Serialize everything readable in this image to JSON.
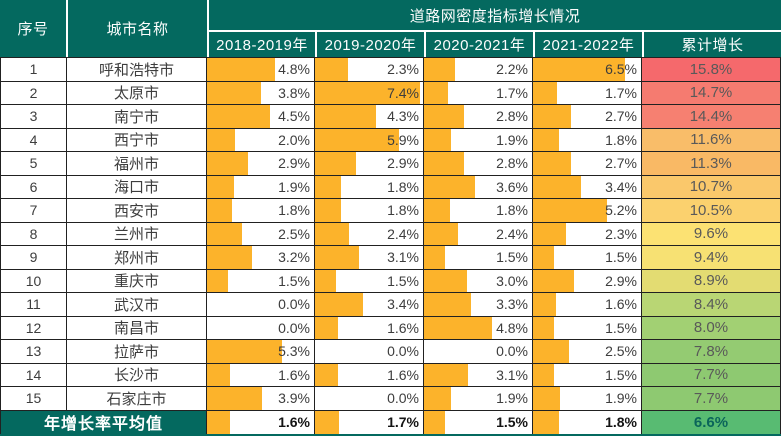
{
  "table": {
    "header": {
      "col_index": "序号",
      "col_city": "城市名称",
      "group_title": "道路网密度指标增长情况",
      "years": [
        "2018-2019年",
        "2019-2020年",
        "2020-2021年",
        "2021-2022年"
      ],
      "col_cumulative": "累计增长"
    },
    "bar_max_percent": 7.6,
    "rows": [
      {
        "index": "1",
        "city": "呼和浩特市",
        "values": [
          "4.8%",
          "2.3%",
          "2.2%",
          "6.5%"
        ],
        "cumulative": "15.8%",
        "cumulative_bg": "#F5696C"
      },
      {
        "index": "2",
        "city": "太原市",
        "values": [
          "3.8%",
          "7.4%",
          "1.7%",
          "1.7%"
        ],
        "cumulative": "14.7%",
        "cumulative_bg": "#F57B70"
      },
      {
        "index": "3",
        "city": "南宁市",
        "values": [
          "4.5%",
          "4.3%",
          "2.8%",
          "2.7%"
        ],
        "cumulative": "14.4%",
        "cumulative_bg": "#F68071"
      },
      {
        "index": "4",
        "city": "西宁市",
        "values": [
          "2.0%",
          "5.9%",
          "1.9%",
          "1.8%"
        ],
        "cumulative": "11.6%",
        "cumulative_bg": "#F9BD69"
      },
      {
        "index": "5",
        "city": "福州市",
        "values": [
          "2.9%",
          "2.9%",
          "2.8%",
          "2.7%"
        ],
        "cumulative": "11.3%",
        "cumulative_bg": "#F9B965"
      },
      {
        "index": "6",
        "city": "海口市",
        "values": [
          "1.9%",
          "1.8%",
          "3.6%",
          "3.4%"
        ],
        "cumulative": "10.7%",
        "cumulative_bg": "#FAC86B"
      },
      {
        "index": "7",
        "city": "西安市",
        "values": [
          "1.8%",
          "1.8%",
          "1.8%",
          "5.2%"
        ],
        "cumulative": "10.5%",
        "cumulative_bg": "#FBD16E"
      },
      {
        "index": "8",
        "city": "兰州市",
        "values": [
          "2.5%",
          "2.4%",
          "2.4%",
          "2.3%"
        ],
        "cumulative": "9.6%",
        "cumulative_bg": "#FCE273"
      },
      {
        "index": "9",
        "city": "郑州市",
        "values": [
          "3.2%",
          "3.1%",
          "1.5%",
          "1.5%"
        ],
        "cumulative": "9.4%",
        "cumulative_bg": "#F7E173"
      },
      {
        "index": "10",
        "city": "重庆市",
        "values": [
          "1.5%",
          "1.5%",
          "3.0%",
          "2.9%"
        ],
        "cumulative": "8.9%",
        "cumulative_bg": "#E3DC72"
      },
      {
        "index": "11",
        "city": "武汉市",
        "values": [
          "0.0%",
          "3.4%",
          "3.3%",
          "1.6%"
        ],
        "cumulative": "8.4%",
        "cumulative_bg": "#B9D674"
      },
      {
        "index": "12",
        "city": "南昌市",
        "values": [
          "0.0%",
          "1.6%",
          "4.8%",
          "1.5%"
        ],
        "cumulative": "8.0%",
        "cumulative_bg": "#A2D073"
      },
      {
        "index": "13",
        "city": "拉萨市",
        "values": [
          "5.3%",
          "0.0%",
          "0.0%",
          "2.5%"
        ],
        "cumulative": "7.8%",
        "cumulative_bg": "#94CB72"
      },
      {
        "index": "14",
        "city": "长沙市",
        "values": [
          "1.6%",
          "1.6%",
          "3.1%",
          "1.5%"
        ],
        "cumulative": "7.7%",
        "cumulative_bg": "#8EC971"
      },
      {
        "index": "15",
        "city": "石家庄市",
        "values": [
          "3.9%",
          "0.0%",
          "1.9%",
          "1.9%"
        ],
        "cumulative": "7.7%",
        "cumulative_bg": "#8EC971"
      }
    ],
    "average": {
      "label": "年增长率平均值",
      "values": [
        "1.6%",
        "1.7%",
        "1.5%",
        "1.8%"
      ],
      "cumulative": "6.6%",
      "cumulative_bg": "#58BB72"
    }
  },
  "colors": {
    "header_bg": "#04695F",
    "bar": "#FCB32B",
    "grid": "#212121",
    "cumulative_max_red": "#F5696C",
    "cumulative_mid_yellow": "#FCE273",
    "cumulative_min_green": "#58BB72"
  },
  "chart_data": {
    "type": "table",
    "title": "道路网密度指标增长情况",
    "columns": [
      "序号",
      "城市名称",
      "2018-2019年",
      "2019-2020年",
      "2020-2021年",
      "2021-2022年",
      "累计增长"
    ],
    "unit": "%",
    "bar_scale_max": 7.6,
    "rows": [
      [
        1,
        "呼和浩特市",
        4.8,
        2.3,
        2.2,
        6.5,
        15.8
      ],
      [
        2,
        "太原市",
        3.8,
        7.4,
        1.7,
        1.7,
        14.7
      ],
      [
        3,
        "南宁市",
        4.5,
        4.3,
        2.8,
        2.7,
        14.4
      ],
      [
        4,
        "西宁市",
        2.0,
        5.9,
        1.9,
        1.8,
        11.6
      ],
      [
        5,
        "福州市",
        2.9,
        2.9,
        2.8,
        2.7,
        11.3
      ],
      [
        6,
        "海口市",
        1.9,
        1.8,
        3.6,
        3.4,
        10.7
      ],
      [
        7,
        "西安市",
        1.8,
        1.8,
        1.8,
        5.2,
        10.5
      ],
      [
        8,
        "兰州市",
        2.5,
        2.4,
        2.4,
        2.3,
        9.6
      ],
      [
        9,
        "郑州市",
        3.2,
        3.1,
        1.5,
        1.5,
        9.4
      ],
      [
        10,
        "重庆市",
        1.5,
        1.5,
        3.0,
        2.9,
        8.9
      ],
      [
        11,
        "武汉市",
        0.0,
        3.4,
        3.3,
        1.6,
        8.4
      ],
      [
        12,
        "南昌市",
        0.0,
        1.6,
        4.8,
        1.5,
        8.0
      ],
      [
        13,
        "拉萨市",
        5.3,
        0.0,
        0.0,
        2.5,
        7.8
      ],
      [
        14,
        "长沙市",
        1.6,
        1.6,
        3.1,
        1.5,
        7.7
      ],
      [
        15,
        "石家庄市",
        3.9,
        0.0,
        1.9,
        1.9,
        7.7
      ]
    ],
    "average_row": {
      "label": "年增长率平均值",
      "values": [
        1.6,
        1.7,
        1.5,
        1.8
      ],
      "cumulative": 6.6
    }
  }
}
